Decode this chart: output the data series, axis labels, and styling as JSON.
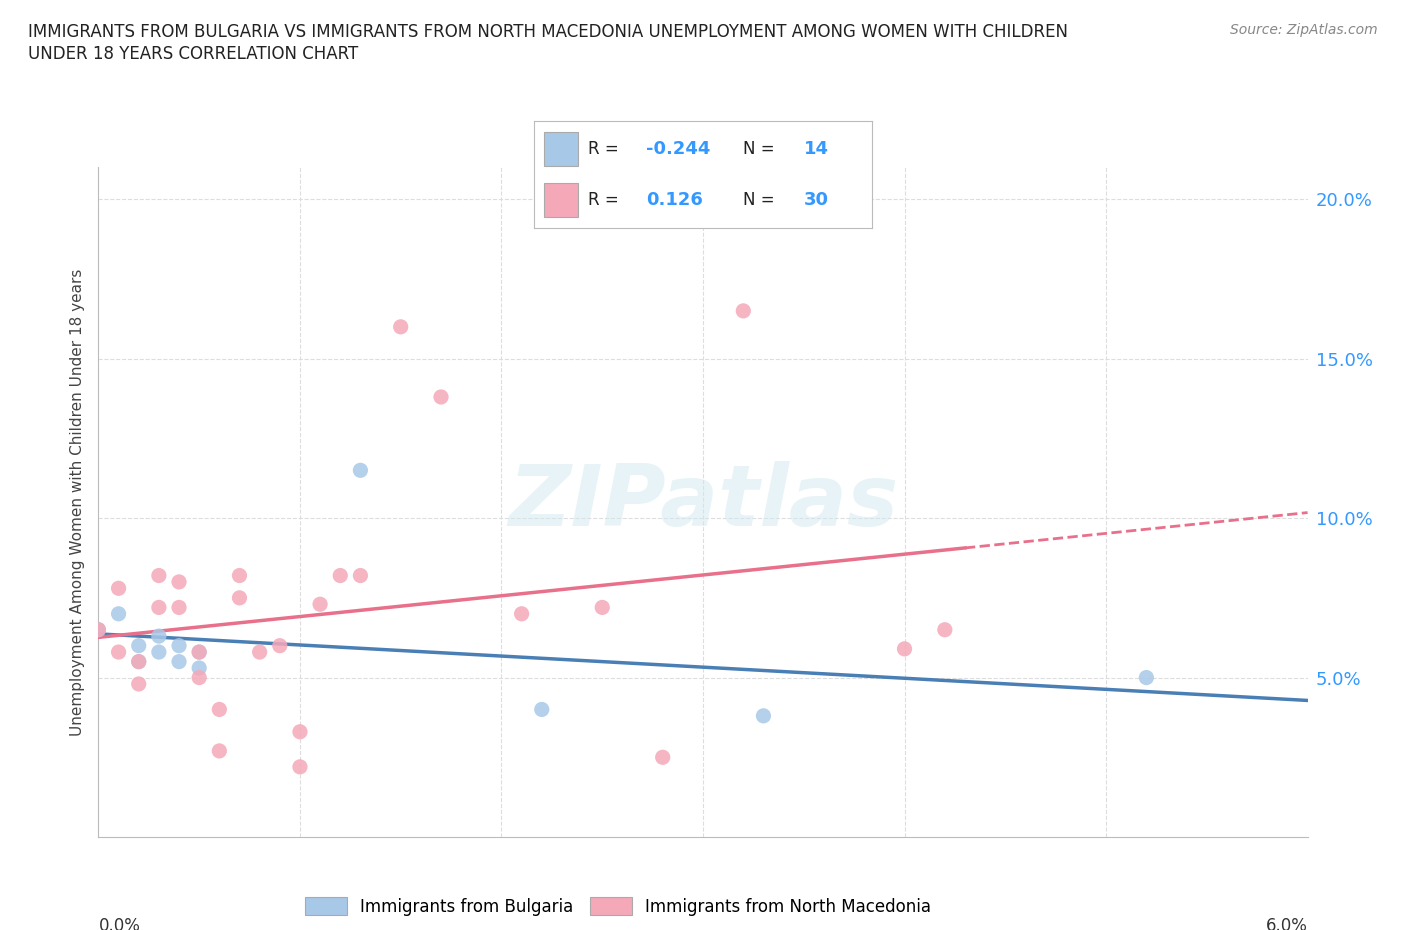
{
  "title_line1": "IMMIGRANTS FROM BULGARIA VS IMMIGRANTS FROM NORTH MACEDONIA UNEMPLOYMENT AMONG WOMEN WITH CHILDREN",
  "title_line2": "UNDER 18 YEARS CORRELATION CHART",
  "source": "Source: ZipAtlas.com",
  "ylabel": "Unemployment Among Women with Children Under 18 years",
  "ytick_values": [
    0.0,
    0.05,
    0.1,
    0.15,
    0.2
  ],
  "ytick_labels": [
    "",
    "5.0%",
    "10.0%",
    "15.0%",
    "20.0%"
  ],
  "xtick_left_label": "0.0%",
  "xtick_right_label": "6.0%",
  "xlim": [
    0.0,
    0.06
  ],
  "ylim": [
    0.0,
    0.21
  ],
  "r_bulgaria": -0.244,
  "n_bulgaria": 14,
  "r_macedonia": 0.126,
  "n_macedonia": 30,
  "legend_label_bulgaria": "Immigrants from Bulgaria",
  "legend_label_macedonia": "Immigrants from North Macedonia",
  "color_bulgaria": "#a8c8e8",
  "color_macedonia": "#f4a8b8",
  "line_color_bulgaria": "#4a7fb5",
  "line_color_macedonia": "#e8708a",
  "watermark_text": "ZIPatlas",
  "bulgaria_x": [
    0.0,
    0.001,
    0.002,
    0.002,
    0.003,
    0.003,
    0.004,
    0.004,
    0.005,
    0.005,
    0.013,
    0.022,
    0.033,
    0.052
  ],
  "bulgaria_y": [
    0.065,
    0.07,
    0.055,
    0.06,
    0.058,
    0.063,
    0.055,
    0.06,
    0.053,
    0.058,
    0.115,
    0.04,
    0.038,
    0.05
  ],
  "macedonia_x": [
    0.0,
    0.001,
    0.001,
    0.002,
    0.002,
    0.003,
    0.003,
    0.004,
    0.004,
    0.005,
    0.005,
    0.006,
    0.006,
    0.007,
    0.007,
    0.008,
    0.009,
    0.01,
    0.01,
    0.011,
    0.012,
    0.013,
    0.015,
    0.017,
    0.021,
    0.025,
    0.028,
    0.032,
    0.04,
    0.042
  ],
  "macedonia_y": [
    0.065,
    0.058,
    0.078,
    0.048,
    0.055,
    0.072,
    0.082,
    0.072,
    0.08,
    0.05,
    0.058,
    0.027,
    0.04,
    0.075,
    0.082,
    0.058,
    0.06,
    0.022,
    0.033,
    0.073,
    0.082,
    0.082,
    0.16,
    0.138,
    0.07,
    0.072,
    0.025,
    0.165,
    0.059,
    0.065
  ],
  "bg_color": "#ffffff",
  "grid_color": "#dddddd",
  "spine_color": "#bbbbbb",
  "title_color": "#222222",
  "source_color": "#888888",
  "ylabel_color": "#444444",
  "right_tick_color": "#3399ff",
  "bottom_tick_color": "#333333"
}
